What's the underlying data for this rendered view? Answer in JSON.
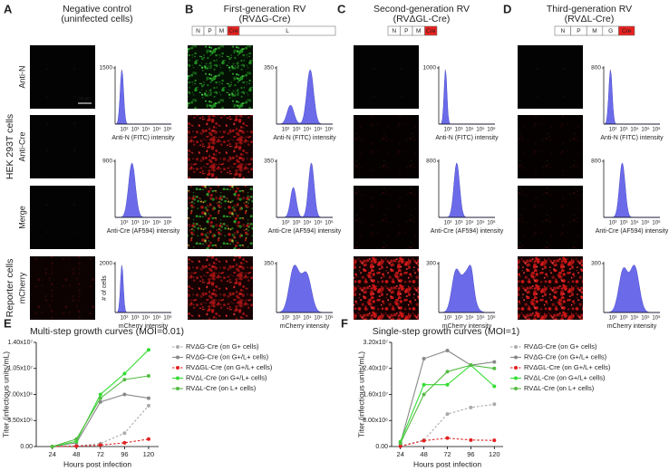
{
  "panels": [
    {
      "letter": "A",
      "title": [
        "Negative control",
        "(uninfected cells)"
      ],
      "hist_yticks": [
        1500,
        900,
        2000
      ]
    },
    {
      "letter": "B",
      "title": [
        "First-generation RV",
        "(RVΔG-Cre)"
      ],
      "genome": [
        {
          "label": "N"
        },
        {
          "label": "P"
        },
        {
          "label": "M"
        },
        {
          "label": "Cre",
          "color": "#e8211e"
        },
        {
          "label": "L"
        }
      ],
      "hist_yticks": [
        350,
        350,
        350
      ]
    },
    {
      "letter": "C",
      "title": [
        "Second-generation RV",
        "(RVΔGL-Cre)"
      ],
      "genome": [
        {
          "label": "N"
        },
        {
          "label": "P"
        },
        {
          "label": "M"
        },
        {
          "label": "Cre",
          "color": "#e8211e"
        }
      ],
      "hist_yticks": [
        1000,
        800,
        300
      ]
    },
    {
      "letter": "D",
      "title": [
        "Third-generation RV",
        "(RVΔL-Cre)"
      ],
      "genome": [
        {
          "label": "N"
        },
        {
          "label": "P"
        },
        {
          "label": "M"
        },
        {
          "label": "G"
        },
        {
          "label": "Cre",
          "color": "#e8211e"
        }
      ],
      "hist_yticks": [
        800,
        800,
        300
      ]
    }
  ],
  "row_labels": [
    "Anti-N",
    "Anti-Cre",
    "Merge",
    "mCherry"
  ],
  "group_labels": [
    "HEK 293T cells",
    "Reporter cells"
  ],
  "hist_xticks": [
    "10²",
    "10³",
    "10⁴",
    "10⁵",
    "10⁶"
  ],
  "hist_xlabels": [
    "Anti-N (FITC) intensity",
    "Anti-Cre (AF594) intensity",
    "mCherry intensity"
  ],
  "hist_ylabel": "# of cells",
  "scale_bar": "50 µm",
  "chart_data": [
    {
      "type": "line",
      "panel_label": "E",
      "title": "Multi-step growth curves (MOI=0.01)",
      "x_label": "Hours post infection",
      "y_label": "Titer (infectious units/mL)",
      "x": [
        24,
        48,
        72,
        96,
        120
      ],
      "xlim": [
        8,
        130
      ],
      "xticks": [
        24,
        48,
        72,
        96,
        120
      ],
      "ylim": [
        0,
        14000000
      ],
      "yticks": [
        {
          "value": 0,
          "label": "0.00"
        },
        {
          "value": 3500000,
          "label": "3.50x10⁶"
        },
        {
          "value": 7000000,
          "label": "7.00x10⁶"
        },
        {
          "value": 10500000,
          "label": "1.05x10⁷"
        },
        {
          "value": 14000000,
          "label": "1.40x10⁷"
        }
      ],
      "series": [
        {
          "name": "RVΔG-Cre (on G+ cells)",
          "color": "#aaaaaa",
          "dashed": true,
          "values": [
            0,
            100000,
            400000,
            1800000,
            5500000
          ]
        },
        {
          "name": "RVΔG-Cre (on G+/L+ cells)",
          "color": "#888888",
          "values": [
            0,
            500000,
            6000000,
            7000000,
            6500000
          ]
        },
        {
          "name": "RVΔGL-Cre (on G+/L+ cells)",
          "color": "#e02020",
          "dashed": true,
          "values": [
            0,
            50000,
            200000,
            500000,
            1000000
          ]
        },
        {
          "name": "RVΔL-Cre (on G+/L+ cells)",
          "color": "#33dd33",
          "values": [
            0,
            700000,
            7000000,
            9800000,
            13000000
          ]
        },
        {
          "name": "RVΔL-Cre (on L+ cells)",
          "color": "#55bb44",
          "values": [
            0,
            1000000,
            6500000,
            9000000,
            9500000
          ]
        }
      ]
    },
    {
      "type": "line",
      "panel_label": "F",
      "title": "Single-step growth curves (MOI=1)",
      "x_label": "Hours post infection",
      "y_label": "Titer (infectious units/mL)",
      "x": [
        24,
        48,
        72,
        96,
        120
      ],
      "xlim": [
        15,
        129
      ],
      "xticks": [
        24,
        48,
        72,
        96,
        120
      ],
      "ylim": [
        0,
        32000000
      ],
      "yticks": [
        {
          "value": 0,
          "label": "0.00"
        },
        {
          "value": 8000000,
          "label": "8.00x10⁶"
        },
        {
          "value": 16000000,
          "label": "1.60x10⁷"
        },
        {
          "value": 24000000,
          "label": "2.40x10⁷"
        },
        {
          "value": 32000000,
          "label": "3.20x10⁷"
        }
      ],
      "series": [
        {
          "name": "RVΔG-Cre (on G+ cells)",
          "color": "#aaaaaa",
          "dashed": true,
          "values": [
            100000,
            2000000,
            10000000,
            12000000,
            13000000
          ]
        },
        {
          "name": "RVΔG-Cre (on G+/L+ cells)",
          "color": "#888888",
          "values": [
            1000000,
            27000000,
            29500000,
            25000000,
            26000000
          ]
        },
        {
          "name": "RVΔGL-Cre (on G+/L+ cells)",
          "color": "#e02020",
          "dashed": true,
          "values": [
            100000,
            1800000,
            2600000,
            2000000,
            1900000
          ]
        },
        {
          "name": "RVΔL-Cre (on G+/L+ cells)",
          "color": "#33dd33",
          "values": [
            1500000,
            19000000,
            19000000,
            25000000,
            18500000
          ]
        },
        {
          "name": "RVΔL-Cre (on L+ cells)",
          "color": "#55bb44",
          "values": [
            1000000,
            16000000,
            23000000,
            25000000,
            24000000
          ]
        }
      ]
    }
  ]
}
